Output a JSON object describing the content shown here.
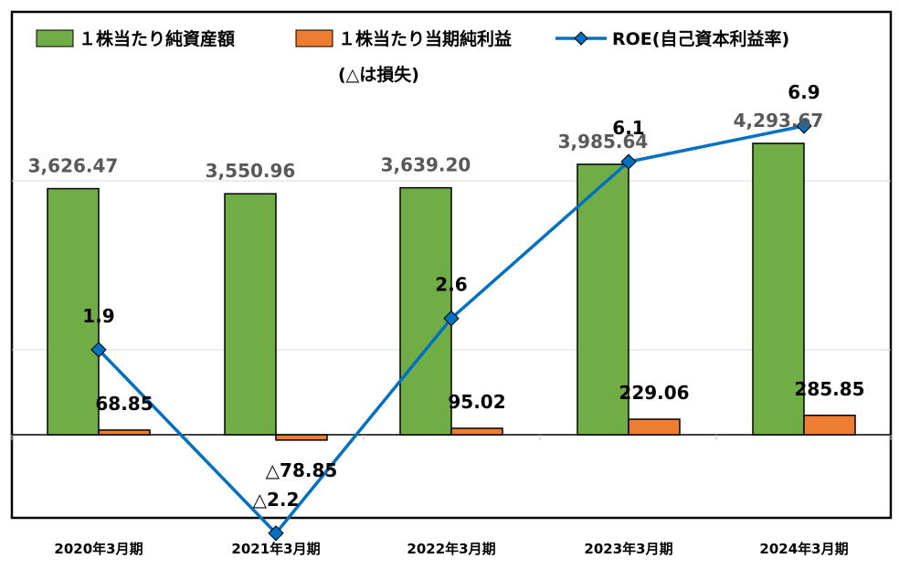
{
  "chart_data": {
    "type": "bar",
    "categories": [
      "2020年3月期",
      "2021年3月期",
      "2022年3月期",
      "2023年3月期",
      "2024年3月期"
    ],
    "series": [
      {
        "name": "１株当たり純資産額",
        "kind": "bar",
        "color": "#70ad47",
        "values": [
          3626.47,
          3550.96,
          3639.2,
          3985.64,
          4293.67
        ],
        "labels": [
          "3,626.47",
          "3,550.96",
          "3,639.20",
          "3,985.64",
          "4,293.67"
        ]
      },
      {
        "name": "１株当たり当期純利益",
        "kind": "bar",
        "color": "#ed7d31",
        "values": [
          68.85,
          -78.85,
          95.02,
          229.06,
          285.85
        ],
        "labels": [
          "68.85",
          "△78.85",
          "95.02",
          "229.06",
          "285.85"
        ]
      },
      {
        "name": "ROE(自己資本利益率)",
        "kind": "line",
        "color": "#0070c0",
        "marker": "diamond",
        "axis": "secondary",
        "values": [
          1.9,
          -2.2,
          2.6,
          6.1,
          6.9
        ],
        "labels": [
          "1.9",
          "△2.2",
          "2.6",
          "6.1",
          "6.9"
        ]
      }
    ],
    "legend_note": "(△は損失)",
    "legend_position": "top",
    "grid": true,
    "note_primary_axis": "bar scale tuned so 0 sits near the lower third"
  }
}
